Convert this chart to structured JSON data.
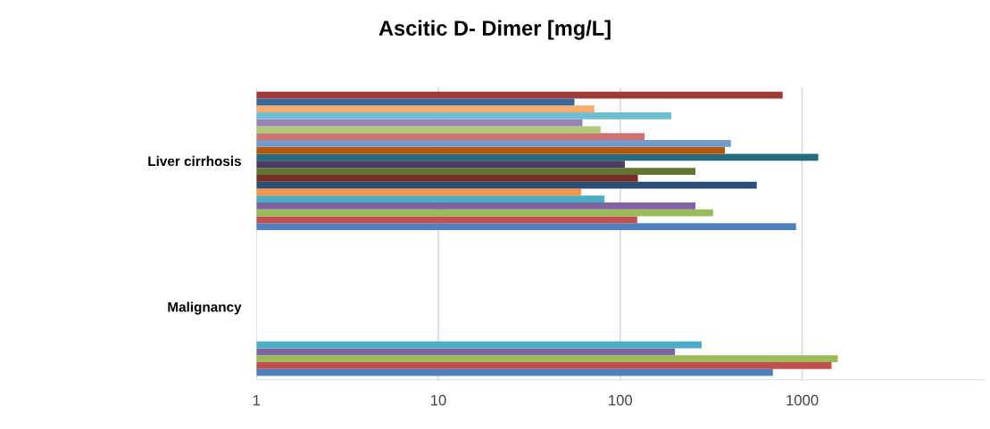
{
  "chart_data": {
    "type": "bar",
    "orientation": "horizontal",
    "title": "Ascitic D- Dimer [mg/L]",
    "categories": [
      "Liver cirrhosis",
      "Malignancy"
    ],
    "log": "x",
    "xlim": [
      1,
      10000
    ],
    "xticks": [
      1,
      10,
      100,
      1000
    ],
    "grid": "x",
    "series": [
      {
        "color": "#4f81bd",
        "values": [
          925,
          690
        ]
      },
      {
        "color": "#c0504d",
        "values": [
          123,
          1450
        ]
      },
      {
        "color": "#9bbb59",
        "values": [
          323,
          1570
        ]
      },
      {
        "color": "#8064a2",
        "values": [
          258,
          199
        ]
      },
      {
        "color": "#4bacc6",
        "values": [
          81,
          279
        ]
      },
      {
        "color": "#f79646",
        "values": [
          60,
          null
        ]
      },
      {
        "color": "#2c4d75",
        "values": [
          562,
          null
        ]
      },
      {
        "color": "#772c2a",
        "values": [
          124,
          null
        ]
      },
      {
        "color": "#5f7530",
        "values": [
          258,
          null
        ]
      },
      {
        "color": "#4d3b62",
        "values": [
          105,
          null
        ]
      },
      {
        "color": "#276a7c",
        "values": [
          1225,
          null
        ]
      },
      {
        "color": "#b65708",
        "values": [
          375,
          null
        ]
      },
      {
        "color": "#729aca",
        "values": [
          405,
          null
        ]
      },
      {
        "color": "#cd7371",
        "values": [
          135,
          null
        ]
      },
      {
        "color": "#afc97a",
        "values": [
          77,
          null
        ]
      },
      {
        "color": "#9983b5",
        "values": [
          61,
          null
        ]
      },
      {
        "color": "#6fbdd1",
        "values": [
          190,
          null
        ]
      },
      {
        "color": "#f9ab6b",
        "values": [
          71,
          null
        ]
      },
      {
        "color": "#3a679c",
        "values": [
          55,
          null
        ]
      },
      {
        "color": "#9e3a38",
        "values": [
          780,
          null
        ]
      }
    ]
  }
}
